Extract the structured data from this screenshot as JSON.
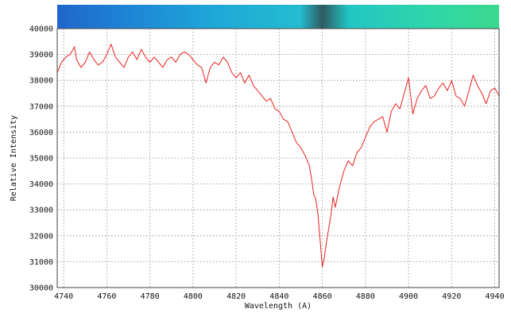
{
  "chart_data": {
    "type": "line",
    "title": "",
    "xlabel": "Wavelength (A)",
    "ylabel": "Relative Intensity",
    "xlim": [
      4737,
      4942
    ],
    "ylim": [
      30000,
      40000
    ],
    "x_ticks": [
      4740,
      4760,
      4780,
      4800,
      4820,
      4840,
      4860,
      4880,
      4900,
      4920,
      4940
    ],
    "y_ticks": [
      30000,
      31000,
      32000,
      33000,
      34000,
      35000,
      36000,
      37000,
      38000,
      39000,
      40000
    ],
    "grid": true,
    "legend": "none",
    "line_color": "#e8231e",
    "spectrum_colorbar": {
      "colors": [
        "#1f66cc",
        "#1e88d6",
        "#1ea8d8",
        "#24bcd0",
        "#2d5a60",
        "#22c6c4",
        "#30d6a8",
        "#3ad98e"
      ]
    },
    "series": [
      {
        "x": [
          4737,
          4739,
          4741,
          4743,
          4745,
          4746,
          4748,
          4750,
          4752,
          4754,
          4756,
          4758,
          4760,
          4762,
          4764,
          4766,
          4768,
          4770,
          4772,
          4774,
          4776,
          4778,
          4780,
          4782,
          4784,
          4786,
          4788,
          4790,
          4792,
          4794,
          4796,
          4798,
          4800,
          4802,
          4804,
          4806,
          4808,
          4810,
          4812,
          4814,
          4816,
          4818,
          4820,
          4822,
          4824,
          4826,
          4828,
          4830,
          4832,
          4834,
          4836,
          4838,
          4840,
          4842,
          4844,
          4846,
          4848,
          4850,
          4852,
          4854,
          4855,
          4856,
          4857,
          4858,
          4859,
          4860,
          4861,
          4862,
          4863,
          4864,
          4865,
          4866,
          4868,
          4870,
          4872,
          4874,
          4876,
          4878,
          4880,
          4882,
          4884,
          4886,
          4888,
          4890,
          4892,
          4894,
          4896,
          4898,
          4900,
          4902,
          4904,
          4906,
          4908,
          4910,
          4912,
          4914,
          4916,
          4918,
          4920,
          4922,
          4924,
          4926,
          4928,
          4930,
          4932,
          4934,
          4936,
          4938,
          4940,
          4942
        ],
        "y": [
          38300,
          38700,
          38900,
          39000,
          39300,
          38800,
          38500,
          38700,
          39100,
          38800,
          38600,
          38700,
          39000,
          39400,
          38900,
          38700,
          38500,
          38900,
          39100,
          38800,
          39200,
          38900,
          38700,
          38900,
          38700,
          38500,
          38800,
          38900,
          38700,
          39000,
          39100,
          39000,
          38800,
          38600,
          38500,
          37900,
          38500,
          38700,
          38600,
          38900,
          38700,
          38300,
          38100,
          38300,
          37900,
          38200,
          37800,
          37600,
          37400,
          37200,
          37300,
          36900,
          36800,
          36500,
          36400,
          36000,
          35600,
          35400,
          35100,
          34700,
          34200,
          33600,
          33400,
          32800,
          31800,
          30800,
          31200,
          31800,
          32300,
          32800,
          33500,
          33100,
          33900,
          34500,
          34900,
          34700,
          35200,
          35400,
          35800,
          36200,
          36400,
          36500,
          36600,
          36000,
          36800,
          37100,
          36900,
          37500,
          38100,
          36700,
          37300,
          37600,
          37800,
          37300,
          37400,
          37700,
          37900,
          37600,
          38000,
          37400,
          37300,
          37000,
          37600,
          38200,
          37800,
          37500,
          37100,
          37600,
          37700,
          37400
        ]
      }
    ]
  }
}
